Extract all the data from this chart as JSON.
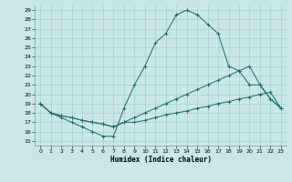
{
  "xlabel": "Humidex (Indice chaleur)",
  "xlim": [
    -0.5,
    23.5
  ],
  "ylim": [
    14.5,
    29.5
  ],
  "xticks": [
    0,
    1,
    2,
    3,
    4,
    5,
    6,
    7,
    8,
    9,
    10,
    11,
    12,
    13,
    14,
    15,
    16,
    17,
    18,
    19,
    20,
    21,
    22,
    23
  ],
  "yticks": [
    15,
    16,
    17,
    18,
    19,
    20,
    21,
    22,
    23,
    24,
    25,
    26,
    27,
    28,
    29
  ],
  "bg_color": "#c8e8e8",
  "grid_color": "#99cccc",
  "line_color": "#1a6868",
  "line1_x": [
    0,
    1,
    2,
    3,
    4,
    5,
    6,
    7,
    8,
    9,
    10,
    11,
    12,
    13,
    14,
    15,
    16,
    17,
    18,
    19,
    20,
    21,
    22,
    23
  ],
  "line1_y": [
    19,
    18,
    17.5,
    17,
    16.5,
    16,
    15.5,
    15.5,
    18.5,
    21,
    23,
    25.5,
    26.5,
    28.5,
    29,
    28.5,
    27.5,
    26.5,
    23,
    22.5,
    21,
    21,
    19.5,
    18.5
  ],
  "line2_x": [
    0,
    1,
    2,
    3,
    4,
    5,
    6,
    7,
    8,
    9,
    10,
    11,
    12,
    13,
    14,
    15,
    16,
    17,
    18,
    19,
    20,
    21,
    22,
    23
  ],
  "line2_y": [
    19,
    18,
    17.7,
    17.5,
    17.2,
    17,
    16.8,
    16.5,
    17,
    17.5,
    18,
    18.5,
    19,
    19.5,
    20,
    20.5,
    21,
    21.5,
    22,
    22.5,
    23,
    21,
    19.5,
    18.5
  ],
  "line3_x": [
    0,
    1,
    2,
    3,
    4,
    5,
    6,
    7,
    8,
    9,
    10,
    11,
    12,
    13,
    14,
    15,
    16,
    17,
    18,
    19,
    20,
    21,
    22,
    23
  ],
  "line3_y": [
    19,
    18,
    17.7,
    17.5,
    17.2,
    17,
    16.8,
    16.5,
    17,
    17,
    17.2,
    17.5,
    17.8,
    18,
    18.2,
    18.5,
    18.7,
    19,
    19.2,
    19.5,
    19.7,
    20,
    20.2,
    18.5
  ]
}
